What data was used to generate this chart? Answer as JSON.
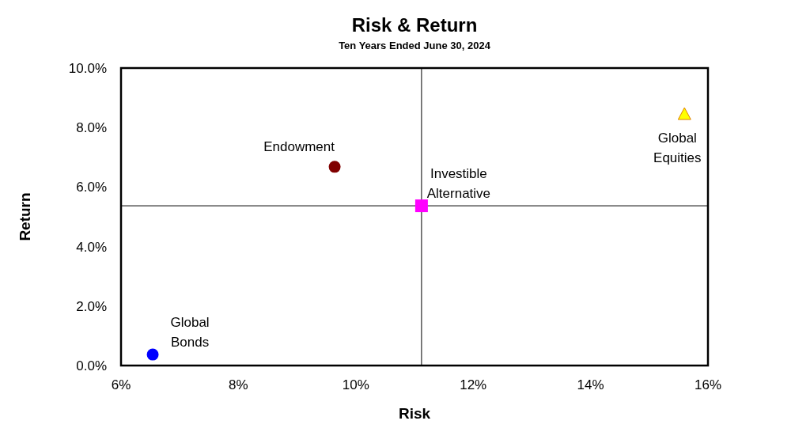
{
  "chart_data": {
    "type": "scatter",
    "title": "Risk & Return",
    "subtitle": "Ten Years Ended June 30, 2024",
    "xlabel": "Risk",
    "ylabel": "Return",
    "xlim": [
      6,
      16
    ],
    "xticks": [
      {
        "value": 6,
        "label": "6%"
      },
      {
        "value": 8,
        "label": "8%"
      },
      {
        "value": 10,
        "label": "10%"
      },
      {
        "value": 12,
        "label": "12%"
      },
      {
        "value": 14,
        "label": "14%"
      },
      {
        "value": 16,
        "label": "16%"
      }
    ],
    "ylim": [
      0,
      10
    ],
    "yticks": [
      {
        "value": 0,
        "label": "0.0%"
      },
      {
        "value": 2,
        "label": "2.0%"
      },
      {
        "value": 4,
        "label": "4.0%"
      },
      {
        "value": 6,
        "label": "6.0%"
      },
      {
        "value": 8,
        "label": "8.0%"
      },
      {
        "value": 10,
        "label": "10.0%"
      }
    ],
    "grid": false,
    "series": [
      {
        "name": "Global Bonds",
        "color": "#0000ff",
        "marker": "circle",
        "x": [
          6.54
        ],
        "values": [
          0.37
        ]
      },
      {
        "name": "Endowment",
        "color": "#800000",
        "marker": "circle",
        "x": [
          9.64
        ],
        "values": [
          6.68
        ]
      },
      {
        "name": "Investible Alternative",
        "color": "#ff00ff",
        "marker": "square",
        "x": [
          11.12
        ],
        "values": [
          5.37
        ]
      },
      {
        "name": "Global Equities",
        "color": "#ffff00",
        "marker": "triangle",
        "x": [
          15.6
        ],
        "values": [
          8.43
        ]
      }
    ],
    "ref_lines": [
      {
        "axis": "x",
        "value": 11.12
      },
      {
        "axis": "y",
        "value": 5.37
      }
    ]
  }
}
